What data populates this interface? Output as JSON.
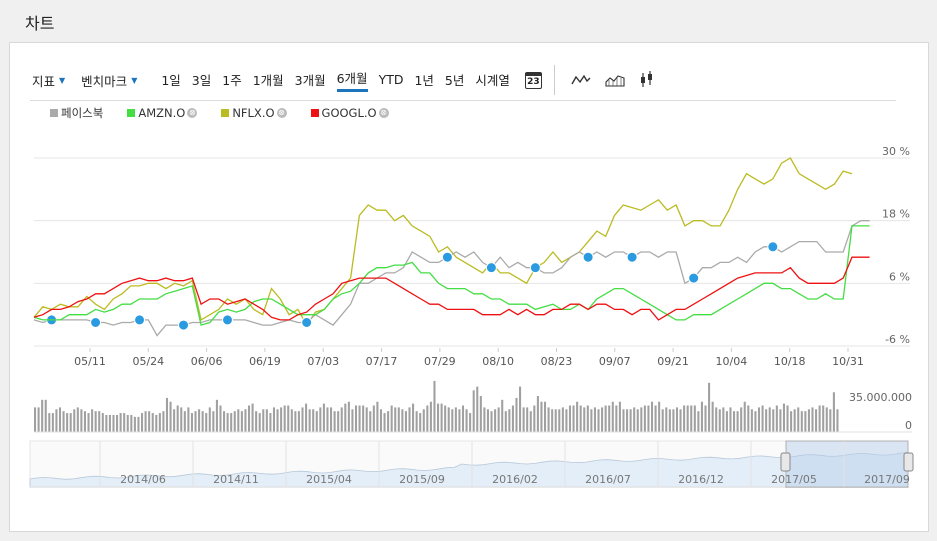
{
  "page": {
    "title": "차트"
  },
  "toolbar": {
    "indicator_label": "지표",
    "benchmark_label": "벤치마크",
    "ranges": [
      "1일",
      "3일",
      "1주",
      "1개월",
      "3개월",
      "6개월",
      "YTD",
      "1년",
      "5년",
      "시계열"
    ],
    "active_range": "6개월",
    "calendar_day": "23",
    "chart_style_icons": [
      "line-style-icon",
      "area-style-icon",
      "candlestick-style-icon"
    ]
  },
  "legend": [
    {
      "name": "페이스북",
      "color": "#aaaaaa",
      "removable": false
    },
    {
      "name": "AMZN.O",
      "color": "#44dd44",
      "removable": true
    },
    {
      "name": "NFLX.O",
      "color": "#bbbb22",
      "removable": true
    },
    {
      "name": "GOOGL.O",
      "color": "#ee1111",
      "removable": true
    }
  ],
  "remove_symbol": "⊗",
  "chart_data": {
    "type": "line",
    "x_ticks": [
      "05/11",
      "05/24",
      "06/06",
      "06/19",
      "07/03",
      "07/17",
      "07/29",
      "08/10",
      "08/23",
      "09/07",
      "09/21",
      "10/04",
      "10/18",
      "10/31"
    ],
    "y_ticks": [
      "30 %",
      "18 %",
      "6 %",
      "-6 %"
    ],
    "ylim": [
      -6,
      30
    ],
    "grid": true,
    "series": [
      {
        "name": "NFLX.O",
        "color": "#bbbb22",
        "values": [
          -0.5,
          1.5,
          1,
          2,
          1.5,
          1.5,
          3.5,
          2,
          1,
          3,
          4,
          5.5,
          5.5,
          6,
          6,
          5,
          6,
          5.5,
          6.5,
          -1,
          0,
          1,
          3,
          2,
          3,
          1,
          0,
          5,
          3,
          0,
          1,
          -2,
          0.5,
          1,
          3,
          5,
          7,
          19,
          21,
          20,
          20,
          18,
          19,
          17,
          16,
          15,
          12,
          13,
          11,
          10,
          9,
          8,
          10,
          8,
          8,
          7,
          6,
          9,
          10,
          12,
          10,
          11,
          12,
          14,
          16,
          15,
          19,
          21,
          20.5,
          20,
          21,
          22,
          20,
          21,
          17,
          18,
          18,
          17,
          17,
          20,
          24,
          27,
          26,
          25,
          26,
          29,
          30,
          27,
          26,
          25,
          24,
          25,
          27.5,
          27
        ],
        "dividend_markers": []
      },
      {
        "name": "페이스북",
        "color": "#aaaaaa",
        "values": [
          -1,
          -1.5,
          -1,
          -1,
          -1,
          -1,
          -1,
          -1.5,
          -1.5,
          -2,
          -1.5,
          -1.5,
          -1,
          -1,
          -4,
          -2,
          -2,
          -2,
          -1.5,
          -1.5,
          -1,
          -1,
          -1,
          -1,
          -1,
          -1.5,
          -2,
          -2,
          -1.5,
          -1,
          -1.5,
          -1.5,
          0,
          -1,
          -2,
          0,
          2,
          6,
          6,
          7,
          8,
          8,
          9,
          12,
          11,
          10,
          10,
          11,
          12,
          11,
          12,
          10,
          9,
          11,
          9,
          10,
          9,
          9,
          8,
          8,
          9,
          11,
          12,
          11,
          12,
          11,
          12,
          12,
          11,
          12,
          12,
          11,
          12,
          12,
          6,
          7,
          9,
          9,
          10,
          10,
          11,
          10,
          12,
          13,
          13,
          12,
          13,
          14,
          14,
          14,
          12,
          12,
          12,
          17,
          18,
          18
        ],
        "markers": [
          2,
          7,
          12,
          17,
          22,
          31,
          47,
          52,
          57,
          63,
          68,
          75,
          84
        ]
      },
      {
        "name": "AMZN.O",
        "color": "#44dd44",
        "values": [
          -0.5,
          -1,
          -1,
          -1,
          0,
          0,
          0,
          1,
          0.5,
          1,
          2,
          2,
          3,
          3,
          3,
          4,
          4.5,
          5,
          5.5,
          -2,
          -1.5,
          0.5,
          1,
          0.5,
          1,
          2.5,
          3,
          3,
          2,
          1,
          0,
          0,
          0,
          1,
          3,
          4,
          4.5,
          6,
          8,
          9,
          9,
          9.5,
          9.5,
          10,
          8,
          8,
          6,
          5,
          5,
          5,
          4,
          4,
          3,
          3,
          2,
          2,
          2,
          1,
          1.5,
          2,
          1,
          1,
          2,
          1,
          3,
          4,
          5,
          5,
          4,
          3,
          2,
          1,
          0,
          -1,
          -1,
          0,
          0,
          0,
          1,
          2,
          3,
          4,
          5,
          6,
          6,
          5,
          5,
          4,
          3,
          3,
          4,
          3,
          3,
          17,
          17,
          17
        ]
      },
      {
        "name": "GOOGL.O",
        "color": "#ee1111",
        "values": [
          -0.5,
          0,
          1,
          1,
          1.5,
          2.5,
          3,
          4,
          4,
          5,
          6,
          6.5,
          7,
          6.5,
          6.5,
          7,
          6.5,
          6.5,
          7,
          2,
          3,
          3,
          2,
          2.5,
          3,
          2,
          1,
          -0.5,
          -1,
          -1,
          0,
          0.5,
          2,
          3,
          4,
          6,
          6.5,
          7,
          7,
          7,
          7,
          6,
          5,
          4,
          3,
          2,
          2,
          1,
          1,
          1,
          1,
          0,
          0,
          0,
          1,
          0,
          1,
          0,
          0,
          1,
          1,
          2,
          2,
          1,
          2,
          2,
          1,
          1,
          0,
          1,
          1,
          -1,
          0,
          1,
          1,
          2,
          3,
          4,
          5,
          6,
          7,
          7.5,
          8,
          8,
          8,
          8,
          9,
          7,
          6,
          6,
          6,
          6,
          7,
          11,
          11,
          11
        ]
      }
    ]
  },
  "volume": {
    "axis_labels": [
      "35.000.000",
      "0"
    ],
    "max": 35000000,
    "values": [
      13,
      13,
      17,
      17,
      10,
      10,
      12,
      13,
      11,
      10,
      10,
      12,
      13,
      12,
      11,
      10,
      12,
      11,
      11,
      10,
      9,
      9,
      9,
      9,
      10,
      10,
      9,
      9,
      8,
      8,
      10,
      11,
      11,
      10,
      9,
      10,
      11,
      18,
      16,
      12,
      14,
      13,
      11,
      13,
      10,
      11,
      12,
      11,
      10,
      13,
      11,
      17,
      14,
      11,
      10,
      10,
      11,
      12,
      11,
      12,
      14,
      15,
      11,
      10,
      12,
      12,
      10,
      13,
      12,
      13,
      14,
      14,
      12,
      11,
      11,
      13,
      15,
      12,
      12,
      11,
      13,
      15,
      13,
      13,
      11,
      11,
      13,
      15,
      16,
      12,
      14,
      14,
      14,
      13,
      11,
      14,
      16,
      12,
      10,
      11,
      14,
      13,
      13,
      12,
      11,
      13,
      15,
      11,
      10,
      12,
      14,
      16,
      27,
      15,
      15,
      14,
      13,
      12,
      13,
      12,
      14,
      12,
      10,
      22,
      24,
      19,
      13,
      12,
      11,
      12,
      13,
      17,
      11,
      12,
      14,
      18,
      24,
      13,
      13,
      11,
      14,
      19,
      16,
      16,
      13,
      12,
      12,
      12,
      13,
      12,
      14,
      14,
      16,
      14,
      13,
      14,
      12,
      13,
      12,
      13,
      14,
      14,
      16,
      14,
      16,
      12,
      12,
      12,
      13,
      12,
      13,
      14,
      14,
      16,
      14,
      16,
      12,
      13,
      12,
      12,
      13,
      12,
      14,
      14,
      14,
      14,
      11,
      16,
      14,
      26,
      16,
      13,
      12,
      13,
      11,
      13,
      11,
      11,
      13,
      16,
      14,
      12,
      11,
      13,
      14,
      12,
      13,
      12,
      14,
      12,
      15,
      14,
      11,
      12,
      13,
      11,
      11,
      12,
      13,
      12,
      14,
      14,
      13,
      12,
      21,
      12
    ]
  },
  "navigator": {
    "x_ticks": [
      "2014/06",
      "2014/11",
      "2015/04",
      "2015/09",
      "2016/02",
      "2016/07",
      "2016/12",
      "2017/05",
      "2017/09"
    ]
  }
}
